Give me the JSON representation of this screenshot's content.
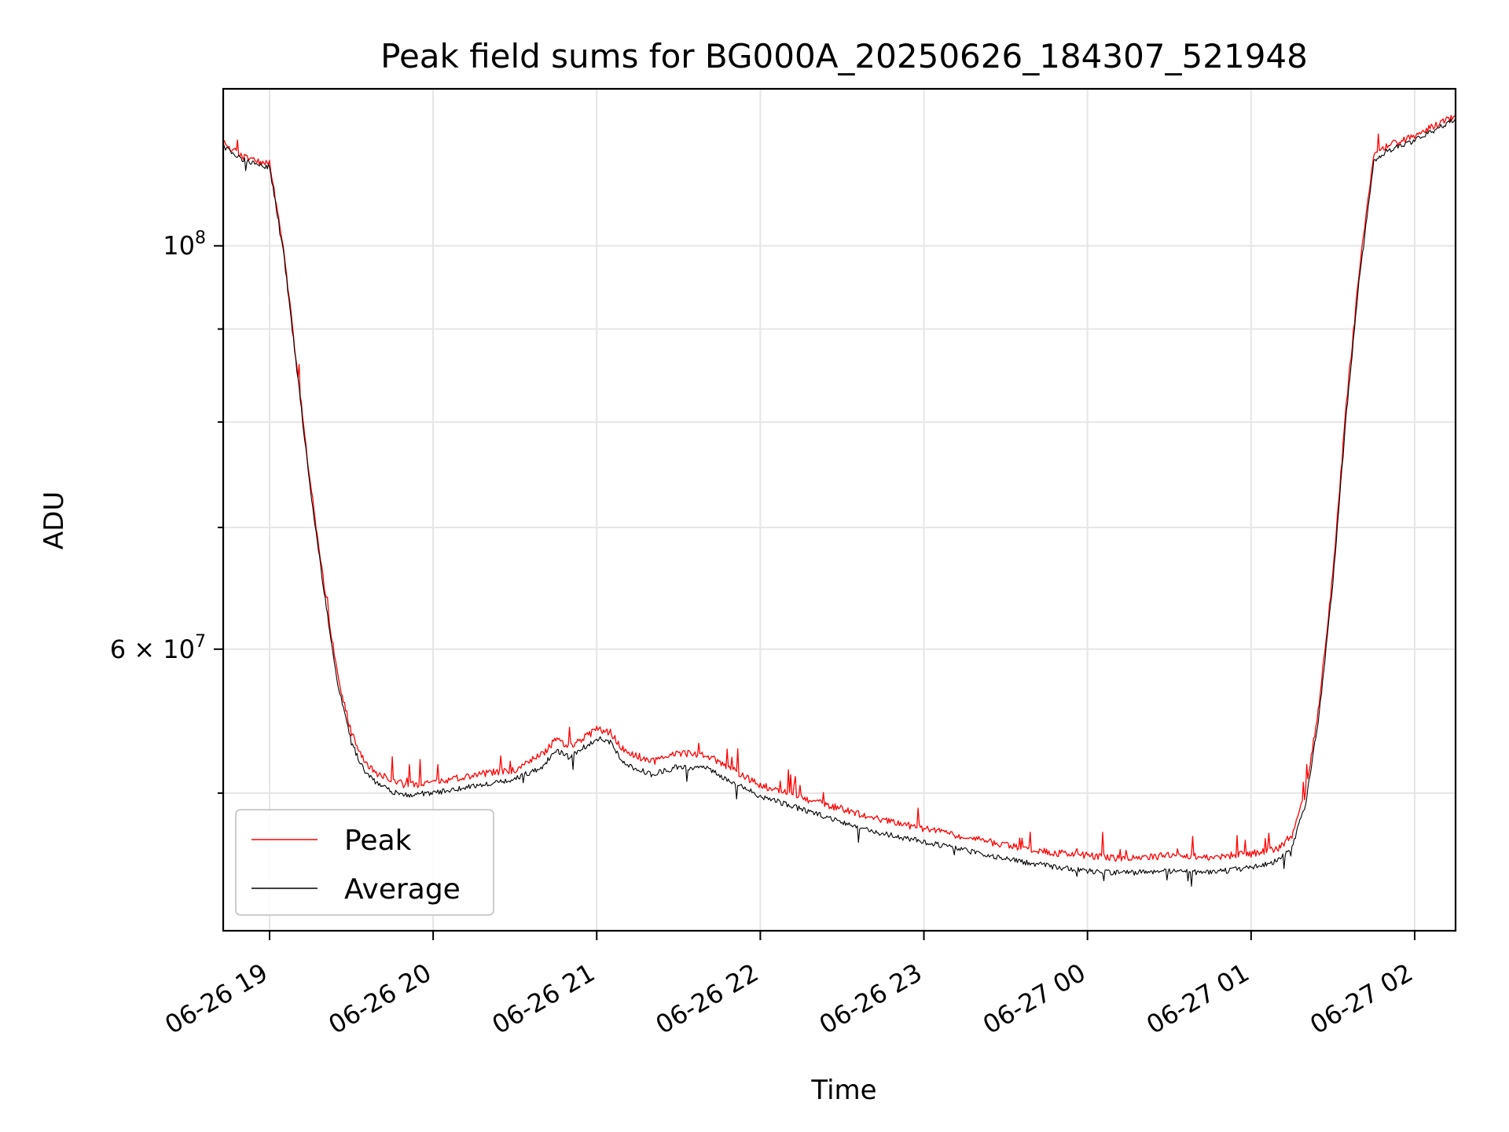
{
  "chart_data": {
    "type": "line",
    "title": "Peak field sums for BG000A_20250626_184307_521948",
    "xlabel": "Time",
    "ylabel": "ADU",
    "y_scale": "log",
    "x_range": [
      "2025-06-26 18:43",
      "2025-06-27 02:15"
    ],
    "ylim": [
      42000000,
      122000000
    ],
    "grid": true,
    "legend_position": "lower-left",
    "x_ticks": [
      {
        "t": "2025-06-26 19:00",
        "label": "06-26 19"
      },
      {
        "t": "2025-06-26 20:00",
        "label": "06-26 20"
      },
      {
        "t": "2025-06-26 21:00",
        "label": "06-26 21"
      },
      {
        "t": "2025-06-26 22:00",
        "label": "06-26 22"
      },
      {
        "t": "2025-06-26 23:00",
        "label": "06-26 23"
      },
      {
        "t": "2025-06-27 00:00",
        "label": "06-27 00"
      },
      {
        "t": "2025-06-27 01:00",
        "label": "06-27 01"
      },
      {
        "t": "2025-06-27 02:00",
        "label": "06-27 02"
      }
    ],
    "y_ticks_major": [
      {
        "value": 60000000,
        "base": "6 × 10",
        "exp": "7"
      },
      {
        "value": 100000000,
        "base": "10",
        "exp": "8"
      }
    ],
    "y_ticks_minor": [
      50000000,
      70000000,
      80000000,
      90000000
    ],
    "series": [
      {
        "name": "Peak",
        "color": "#ff0000",
        "x": [
          "2025-06-26 18:43",
          "2025-06-26 18:50",
          "2025-06-26 18:55",
          "2025-06-26 19:00",
          "2025-06-26 19:05",
          "2025-06-26 19:10",
          "2025-06-26 19:15",
          "2025-06-26 19:20",
          "2025-06-26 19:25",
          "2025-06-26 19:30",
          "2025-06-26 19:35",
          "2025-06-26 19:40",
          "2025-06-26 19:45",
          "2025-06-26 19:50",
          "2025-06-26 20:00",
          "2025-06-26 20:10",
          "2025-06-26 20:20",
          "2025-06-26 20:30",
          "2025-06-26 20:40",
          "2025-06-26 20:45",
          "2025-06-26 20:50",
          "2025-06-26 21:00",
          "2025-06-26 21:05",
          "2025-06-26 21:10",
          "2025-06-26 21:20",
          "2025-06-26 21:30",
          "2025-06-26 21:40",
          "2025-06-26 21:50",
          "2025-06-26 22:00",
          "2025-06-26 22:15",
          "2025-06-26 22:30",
          "2025-06-26 22:45",
          "2025-06-26 23:00",
          "2025-06-26 23:15",
          "2025-06-26 23:30",
          "2025-06-26 23:45",
          "2025-06-27 00:00",
          "2025-06-27 00:15",
          "2025-06-27 00:30",
          "2025-06-27 00:45",
          "2025-06-27 01:00",
          "2025-06-27 01:10",
          "2025-06-27 01:15",
          "2025-06-27 01:20",
          "2025-06-27 01:25",
          "2025-06-27 01:30",
          "2025-06-27 01:35",
          "2025-06-27 01:40",
          "2025-06-27 01:45",
          "2025-06-27 01:50",
          "2025-06-27 02:00",
          "2025-06-27 02:10",
          "2025-06-27 02:15"
        ],
        "y": [
          114000000,
          112000000,
          111500000,
          111000000,
          100000000,
          86000000,
          74000000,
          65000000,
          58000000,
          54000000,
          52000000,
          51200000,
          50800000,
          50500000,
          50600000,
          51000000,
          51300000,
          51500000,
          52500000,
          53500000,
          53000000,
          54200000,
          54000000,
          52800000,
          52000000,
          52600000,
          52500000,
          51500000,
          50500000,
          49700000,
          49000000,
          48300000,
          47800000,
          47300000,
          46800000,
          46400000,
          46200000,
          46000000,
          46200000,
          46100000,
          46300000,
          46600000,
          47400000,
          50000000,
          56000000,
          66000000,
          82000000,
          98000000,
          112000000,
          113500000,
          115000000,
          117000000,
          118000000
        ]
      },
      {
        "name": "Average",
        "color": "#000000",
        "x": [
          "2025-06-26 18:43",
          "2025-06-26 18:50",
          "2025-06-26 18:55",
          "2025-06-26 19:00",
          "2025-06-26 19:05",
          "2025-06-26 19:10",
          "2025-06-26 19:15",
          "2025-06-26 19:20",
          "2025-06-26 19:25",
          "2025-06-26 19:30",
          "2025-06-26 19:35",
          "2025-06-26 19:40",
          "2025-06-26 19:45",
          "2025-06-26 19:50",
          "2025-06-26 20:00",
          "2025-06-26 20:10",
          "2025-06-26 20:20",
          "2025-06-26 20:30",
          "2025-06-26 20:40",
          "2025-06-26 20:45",
          "2025-06-26 20:50",
          "2025-06-26 21:00",
          "2025-06-26 21:05",
          "2025-06-26 21:10",
          "2025-06-26 21:20",
          "2025-06-26 21:30",
          "2025-06-26 21:40",
          "2025-06-26 21:50",
          "2025-06-26 22:00",
          "2025-06-26 22:15",
          "2025-06-26 22:30",
          "2025-06-26 22:45",
          "2025-06-26 23:00",
          "2025-06-26 23:15",
          "2025-06-26 23:30",
          "2025-06-26 23:45",
          "2025-06-27 00:00",
          "2025-06-27 00:15",
          "2025-06-27 00:30",
          "2025-06-27 00:45",
          "2025-06-27 01:00",
          "2025-06-27 01:10",
          "2025-06-27 01:15",
          "2025-06-27 01:20",
          "2025-06-27 01:25",
          "2025-06-27 01:30",
          "2025-06-27 01:35",
          "2025-06-27 01:40",
          "2025-06-27 01:45",
          "2025-06-27 01:50",
          "2025-06-27 02:00",
          "2025-06-27 02:10",
          "2025-06-27 02:15"
        ],
        "y": [
          113500000,
          111500000,
          111000000,
          110500000,
          99500000,
          85500000,
          73500000,
          64500000,
          57500000,
          53300000,
          51300000,
          50500000,
          50100000,
          49900000,
          50000000,
          50300000,
          50600000,
          50900000,
          51700000,
          52800000,
          52300000,
          53600000,
          53300000,
          51900000,
          51200000,
          51700000,
          51600000,
          50700000,
          49800000,
          49000000,
          48200000,
          47500000,
          47000000,
          46500000,
          46000000,
          45600000,
          45300000,
          45200000,
          45300000,
          45200000,
          45500000,
          45900000,
          46700000,
          49300000,
          55300000,
          65300000,
          81000000,
          97000000,
          111200000,
          112800000,
          114300000,
          116300000,
          117500000
        ]
      }
    ]
  }
}
